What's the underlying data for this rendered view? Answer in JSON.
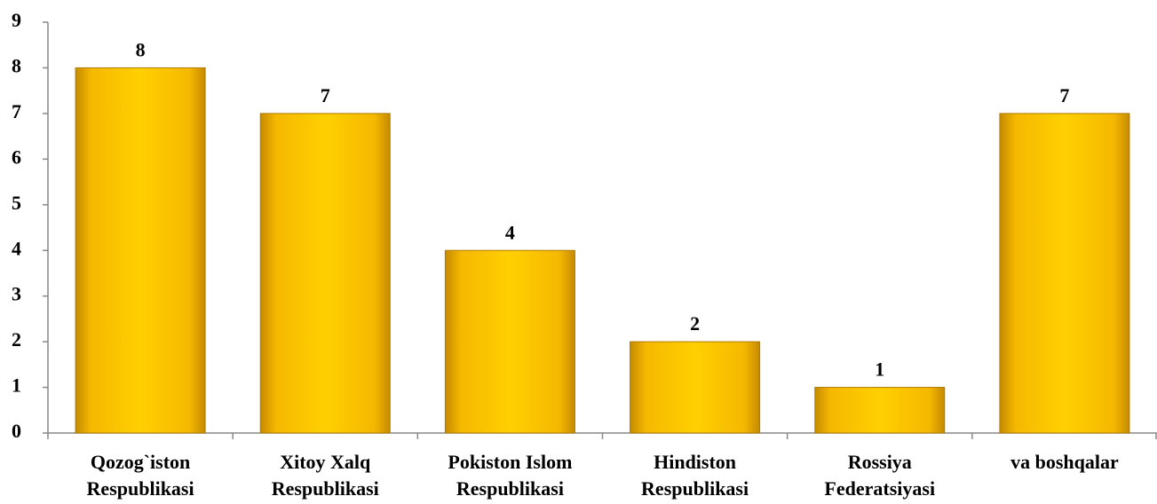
{
  "chart_data": {
    "type": "bar",
    "categories": [
      [
        "Qozog`iston",
        "Respublikasi"
      ],
      [
        "Xitoy Xalq",
        "Respublikasi"
      ],
      [
        "Pokiston  Islom",
        "Respublikasi"
      ],
      [
        "Hindiston",
        "Respublikasi"
      ],
      [
        "Rossiya",
        "Federatsiyasi"
      ],
      [
        "va boshqalar"
      ]
    ],
    "values": [
      8,
      7,
      4,
      2,
      1,
      7
    ],
    "color": "#ffcc00",
    "ylim": [
      0,
      9
    ],
    "yticks": [
      0,
      1,
      2,
      3,
      4,
      5,
      6,
      7,
      8,
      9
    ],
    "grid": false
  }
}
